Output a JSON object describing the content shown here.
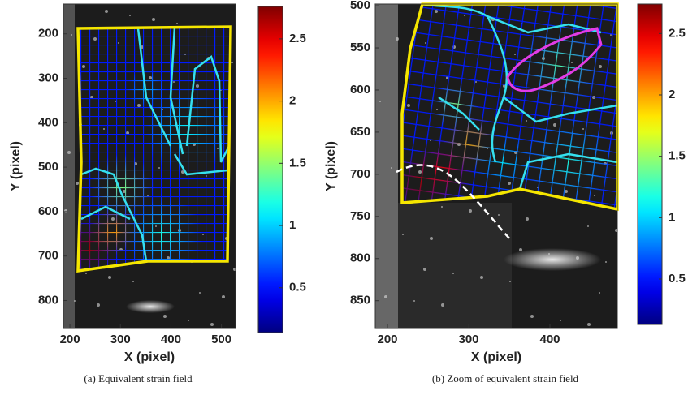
{
  "chart_data": [
    {
      "type": "heatmap",
      "caption": "(a) Equivalent strain field",
      "xlabel": "X (pixel)",
      "ylabel": "Y (pixel)",
      "xlim": [
        187,
        528
      ],
      "ylim": [
        863,
        133
      ],
      "xticks": [
        200,
        300,
        400,
        500
      ],
      "yticks": [
        200,
        300,
        400,
        500,
        600,
        700,
        800
      ],
      "colormap": "jet",
      "clim": [
        0.14,
        2.76
      ],
      "cticks": [
        0.5,
        1,
        1.5,
        2,
        2.5
      ]
    },
    {
      "type": "heatmap",
      "caption": "(b) Zoom of equivalent strain field",
      "xlabel": "X (pixel)",
      "ylabel": "Y (pixel)",
      "xlim": [
        185,
        483
      ],
      "ylim": [
        883,
        498
      ],
      "xticks": [
        200,
        300,
        400
      ],
      "yticks": [
        500,
        550,
        600,
        650,
        700,
        750,
        800,
        850
      ],
      "colormap": "jet",
      "clim": [
        0.13,
        2.74
      ],
      "cticks": [
        0.5,
        1,
        1.5,
        2,
        2.5
      ]
    }
  ]
}
